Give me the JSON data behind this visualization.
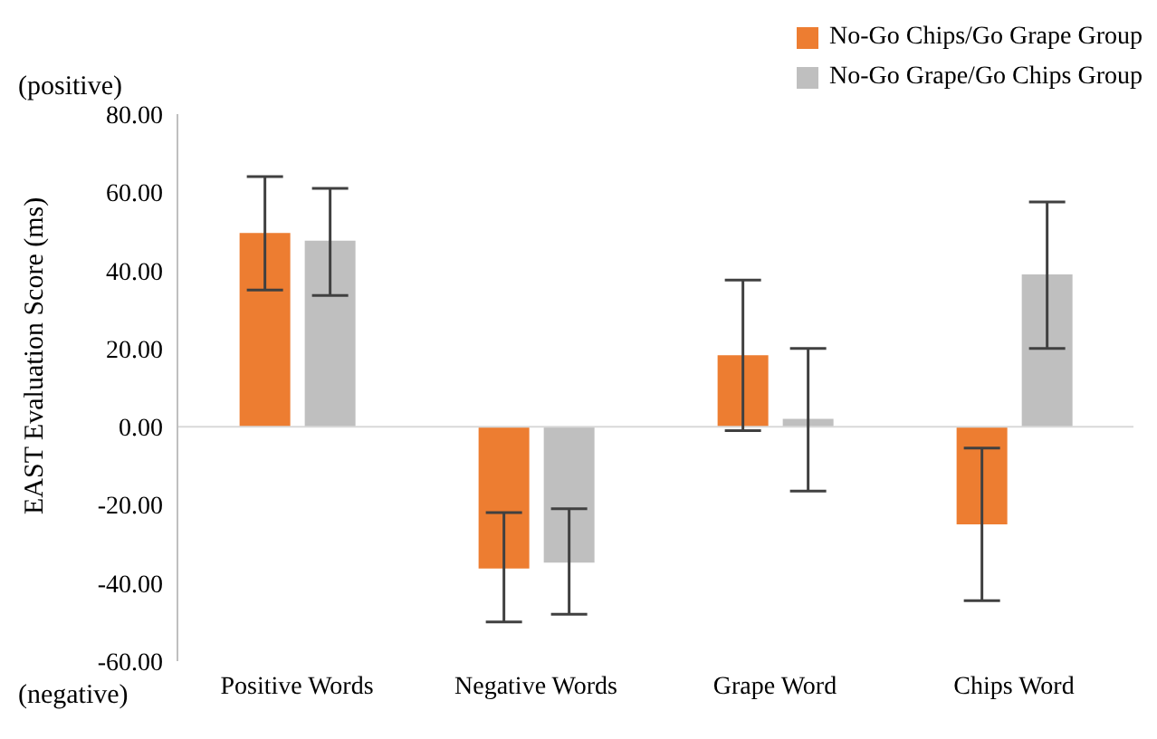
{
  "chart_data": {
    "type": "bar",
    "ylabel": "EAST Evaluation Score (ms)",
    "annotations": [
      "(positive)",
      "(negative)"
    ],
    "categories": [
      "Positive Words",
      "Negative Words",
      "Grape Word",
      "Chips Word"
    ],
    "series": [
      {
        "name": "No-Go Chips/Go Grape Group",
        "color": "#ed7d31",
        "values": [
          49.6,
          -36.3,
          18.3,
          -25.0
        ],
        "errors": [
          [
            35.0,
            64.0
          ],
          [
            -50.0,
            -22.0
          ],
          [
            -1.0,
            37.5
          ],
          [
            -44.5,
            -5.5
          ]
        ]
      },
      {
        "name": "No-Go Grape/Go Chips Group",
        "color": "#bfbfbf",
        "values": [
          47.6,
          -34.8,
          2.0,
          39.0
        ],
        "errors": [
          [
            33.6,
            61.0
          ],
          [
            -48.0,
            -21.0
          ],
          [
            -16.5,
            20.0
          ],
          [
            20.0,
            57.5
          ]
        ]
      }
    ],
    "ylim": [
      -60,
      80
    ],
    "yticks": [
      {
        "value": -60,
        "label": "-60.00"
      },
      {
        "value": -40,
        "label": "-40.00"
      },
      {
        "value": -20,
        "label": "-20.00"
      },
      {
        "value": 0,
        "label": "0.00"
      },
      {
        "value": 20,
        "label": "20.00"
      },
      {
        "value": 40,
        "label": "40.00"
      },
      {
        "value": 60,
        "label": "60.00"
      },
      {
        "value": 80,
        "label": "80.00"
      }
    ],
    "ref_lines": [
      {
        "axis": "y",
        "value": 0,
        "color": "#d9d9d9"
      }
    ],
    "grid": false,
    "legend": "top right"
  }
}
